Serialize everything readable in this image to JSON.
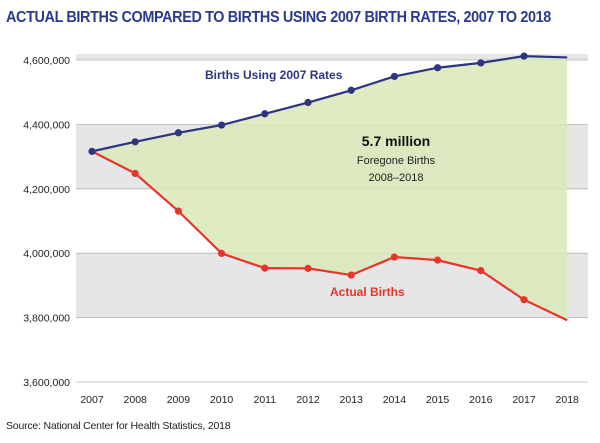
{
  "title": "ACTUAL BIRTHS COMPARED TO BIRTHS USING 2007 BIRTH RATES, 2007 TO 2018",
  "source": "Source: National Center for Health Statistics, 2018",
  "colors": {
    "title": "#2a3a8c",
    "projected_line": "#2d3480",
    "actual_line": "#e8352a",
    "actual_label": "#e8352a",
    "fill": "#d9e7b8",
    "plot_background": "#e6e6e8"
  },
  "chart_data": {
    "type": "line",
    "x": [
      "2007",
      "2008",
      "2009",
      "2010",
      "2011",
      "2012",
      "2013",
      "2014",
      "2015",
      "2016",
      "2017",
      "2018"
    ],
    "ylim": [
      3600000,
      4600000
    ],
    "yticks": [
      3600000,
      3800000,
      4000000,
      4200000,
      4400000,
      4600000
    ],
    "ytick_labels": [
      "3,600,000",
      "3,800,000",
      "4,000,000",
      "4,200,000",
      "4,400,000",
      "4,600,000"
    ],
    "grid": "horizontal",
    "series": [
      {
        "name": "Births Using 2007 Rates",
        "values": [
          4316233,
          4346000,
          4374000,
          4398000,
          4433000,
          4468000,
          4506000,
          4549000,
          4576000,
          4591000,
          4612000,
          4608000
        ]
      },
      {
        "name": "Actual Births",
        "values": [
          4316233,
          4247694,
          4130665,
          3999386,
          3953590,
          3952841,
          3932181,
          3988076,
          3978497,
          3945875,
          3855500,
          3791712
        ]
      }
    ],
    "annotation": {
      "headline": "5.7 million",
      "line1": "Foregone Births",
      "line2": "2008–2018"
    }
  }
}
